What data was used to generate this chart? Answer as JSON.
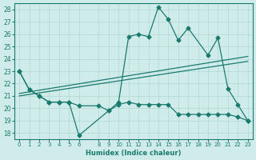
{
  "xlabel": "Humidex (Indice chaleur)",
  "background_color": "#d0ecea",
  "grid_color": "#b0d8d4",
  "line_color": "#1a7a6e",
  "ylim": [
    17.5,
    28.5
  ],
  "xlim": [
    -0.5,
    23.5
  ],
  "yticks": [
    18,
    19,
    20,
    21,
    22,
    23,
    24,
    25,
    26,
    27,
    28
  ],
  "xticks": [
    0,
    1,
    2,
    3,
    4,
    5,
    6,
    8,
    9,
    10,
    11,
    12,
    13,
    14,
    15,
    16,
    17,
    18,
    19,
    20,
    21,
    22,
    23
  ],
  "xtick_labels": [
    "0",
    "1",
    "2",
    "3",
    "4",
    "5",
    "6",
    "8",
    "9",
    "10",
    "11",
    "12",
    "13",
    "14",
    "15",
    "16",
    "17",
    "18",
    "19",
    "20",
    "21",
    "22",
    "23"
  ],
  "series1_x": [
    0,
    1,
    2,
    3,
    4,
    5,
    6,
    9,
    10,
    11,
    12,
    13,
    14,
    15,
    16,
    17,
    19,
    20,
    21,
    22,
    23
  ],
  "series1_y": [
    23.0,
    21.5,
    21.0,
    20.5,
    20.5,
    20.5,
    17.8,
    19.8,
    20.5,
    25.8,
    26.0,
    25.8,
    28.2,
    27.2,
    25.5,
    26.5,
    24.3,
    25.7,
    21.6,
    20.3,
    19.0
  ],
  "series2_x": [
    0,
    1,
    2,
    3,
    4,
    5,
    6,
    8,
    9,
    10,
    11,
    12,
    13,
    14,
    15,
    16,
    17,
    18,
    19,
    20,
    21,
    22,
    23
  ],
  "series2_y": [
    23.0,
    21.5,
    21.0,
    20.5,
    20.5,
    20.5,
    20.2,
    20.2,
    19.8,
    20.3,
    20.5,
    20.3,
    20.3,
    20.3,
    20.3,
    19.5,
    19.5,
    19.5,
    19.5,
    19.5,
    19.5,
    19.3,
    19.0
  ],
  "trend1_x": [
    0,
    23
  ],
  "trend1_y": [
    21.2,
    24.2
  ],
  "trend2_x": [
    0,
    23
  ],
  "trend2_y": [
    21.0,
    23.8
  ]
}
